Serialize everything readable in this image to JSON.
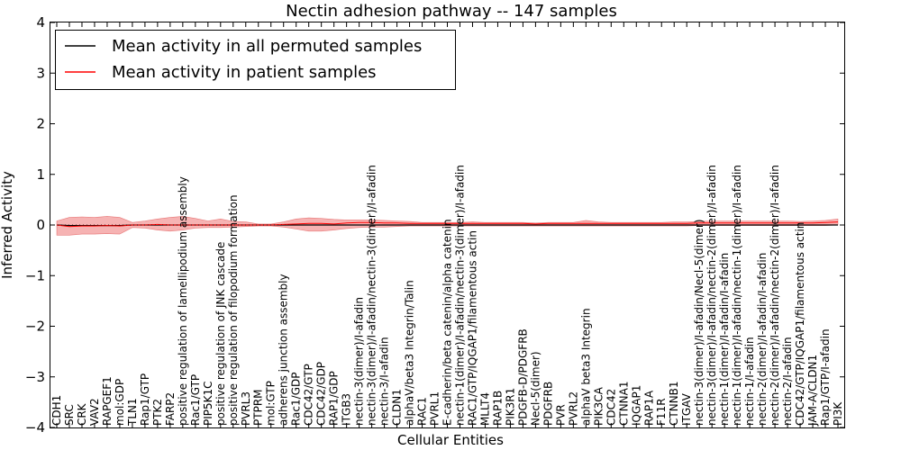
{
  "chart_data": {
    "type": "line",
    "title": "Nectin adhesion pathway -- 147 samples",
    "xlabel": "Cellular Entities",
    "ylabel": "Inferred Activity",
    "ylim": [
      -4,
      4
    ],
    "yticks": [
      "−4",
      "−3",
      "−2",
      "−1",
      "0",
      "1",
      "2",
      "3",
      "4"
    ],
    "legend": {
      "placement": "top-left",
      "entries": [
        {
          "label": "Mean activity in all permuted samples",
          "color": "#000000"
        },
        {
          "label": "Mean activity in patient samples",
          "color": "#ff0000"
        }
      ]
    },
    "band_color": "#f08080",
    "categories": [
      "CDH1",
      "SRC",
      "CRK",
      "VAV2",
      "RAPGEF1",
      "mol:GDP",
      "TLN1",
      "Rap1/GTP",
      "PTK2",
      "FARP2",
      "positive regulation of lamellipodium assembly",
      "Rac1/GTP",
      "PIP5K1C",
      "positive regulation of JNK cascade",
      "positive regulation of filopodium formation",
      "PVRL3",
      "PTPRM",
      "mol:GTP",
      "adherens junction assembly",
      "Rac1/GDP",
      "CDC42/GTP",
      "CDC42/GDP",
      "RAP1/GDP",
      "ITGB3",
      "nectin-3(dimer)/I-afadin",
      "nectin-3(dimer)/I-afadin/nectin-3(dimer)/I-afadin",
      "nectin-3/I-afadin",
      "CLDN1",
      "alphaV/beta3 Integrin/Talin",
      "RAC1",
      "PVRL1",
      "E-cadherin/beta catenin/alpha catenin",
      "nectin-1(dimer)/I-afadin/nectin-3(dimer)/I-afadin",
      "RAC1/GTP/IQGAP1/filamentous actin",
      "MLLT4",
      "RAP1B",
      "PIK3R1",
      "PDGFB-D/PDGFRB",
      "Necl-5(dimer)",
      "PDGFRB",
      "PVR",
      "PVRL2",
      "alphaV beta3 Integrin",
      "PIK3CA",
      "CDC42",
      "CTNNA1",
      "IQGAP1",
      "RAP1A",
      "F11R",
      "CTNNB1",
      "ITGAV",
      "nectin-3(dimer)/I-afadin/Necl-5(dimer)",
      "nectin-3(dimer)/I-afadin/nectin-2(dimer)/I-afadin",
      "nectin-1(dimer)/I-afadin/I-afadin",
      "nectin-1(dimer)/I-afadin/nectin-1(dimer)/I-afadin",
      "nectin-1/I-afadin",
      "nectin-2(dimer)/I-afadin/I-afadin",
      "nectin-2(dimer)/I-afadin/nectin-2(dimer)/I-afadin",
      "nectin-2/I-afadin",
      "CDC42/GTP/IQGAP1/filamentous actin",
      "JAM-A/CLDN1",
      "Rap1/GTP/I-afadin",
      "PI3K"
    ],
    "series": [
      {
        "name": "Mean activity in all permuted samples",
        "color": "#000000",
        "values": [
          0.0,
          -0.01,
          -0.01,
          -0.01,
          -0.01,
          -0.01,
          0.0,
          0.0,
          0.0,
          0.0,
          0.0,
          0.0,
          0.0,
          0.0,
          0.0,
          0.0,
          0.0,
          0.0,
          0.0,
          0.0,
          0.0,
          0.0,
          0.0,
          0.0,
          0.0,
          0.0,
          0.0,
          0.0,
          0.0,
          0.0,
          0.0,
          0.0,
          0.0,
          0.0,
          0.0,
          0.0,
          0.0,
          0.0,
          0.0,
          0.0,
          0.0,
          0.0,
          0.0,
          0.0,
          0.0,
          0.0,
          0.0,
          0.0,
          0.0,
          0.0,
          0.0,
          0.0,
          0.0,
          0.0,
          0.0,
          0.0,
          0.0,
          0.0,
          0.0,
          0.0,
          0.0,
          0.0,
          0.0
        ]
      },
      {
        "name": "Mean activity in patient samples",
        "color": "#ff0000",
        "values": [
          0.0,
          -0.03,
          -0.02,
          -0.02,
          -0.01,
          -0.02,
          0.0,
          0.0,
          0.01,
          0.0,
          0.0,
          0.0,
          0.0,
          0.0,
          0.0,
          0.0,
          0.0,
          0.0,
          0.01,
          0.02,
          0.03,
          0.03,
          0.02,
          0.04,
          0.05,
          0.05,
          0.04,
          0.04,
          0.03,
          0.03,
          0.03,
          0.03,
          0.03,
          0.03,
          0.03,
          0.03,
          0.03,
          0.03,
          0.02,
          0.03,
          0.03,
          0.03,
          0.03,
          0.03,
          0.03,
          0.03,
          0.03,
          0.03,
          0.03,
          0.03,
          0.03,
          0.04,
          0.04,
          0.04,
          0.04,
          0.04,
          0.04,
          0.04,
          0.04,
          0.04,
          0.04,
          0.05,
          0.06
        ]
      }
    ],
    "band_upper": [
      0.08,
      0.15,
      0.16,
      0.15,
      0.17,
      0.15,
      0.05,
      0.08,
      0.12,
      0.15,
      0.17,
      0.13,
      0.08,
      0.12,
      0.07,
      0.06,
      0.02,
      0.02,
      0.06,
      0.12,
      0.14,
      0.13,
      0.11,
      0.1,
      0.1,
      0.1,
      0.09,
      0.08,
      0.07,
      0.05,
      0.05,
      0.05,
      0.05,
      0.06,
      0.05,
      0.05,
      0.05,
      0.05,
      0.04,
      0.05,
      0.05,
      0.05,
      0.09,
      0.06,
      0.05,
      0.05,
      0.05,
      0.05,
      0.05,
      0.06,
      0.06,
      0.07,
      0.08,
      0.08,
      0.08,
      0.08,
      0.08,
      0.08,
      0.08,
      0.07,
      0.08,
      0.09,
      0.12
    ],
    "band_lower": [
      -0.2,
      -0.2,
      -0.18,
      -0.18,
      -0.17,
      -0.18,
      -0.05,
      -0.06,
      -0.1,
      -0.12,
      -0.1,
      -0.06,
      -0.05,
      -0.05,
      -0.04,
      -0.03,
      -0.02,
      -0.02,
      -0.04,
      -0.08,
      -0.12,
      -0.12,
      -0.1,
      -0.07,
      -0.05,
      -0.04,
      -0.04,
      -0.03,
      -0.02,
      -0.02,
      -0.02,
      -0.02,
      -0.02,
      -0.02,
      -0.02,
      -0.02,
      -0.02,
      -0.02,
      -0.02,
      -0.02,
      -0.02,
      -0.02,
      -0.02,
      -0.02,
      -0.02,
      -0.02,
      -0.02,
      -0.02,
      -0.02,
      -0.02,
      -0.02,
      -0.01,
      -0.01,
      -0.01,
      -0.01,
      -0.01,
      -0.01,
      -0.01,
      -0.01,
      -0.01,
      -0.01,
      -0.01,
      0.0
    ]
  }
}
